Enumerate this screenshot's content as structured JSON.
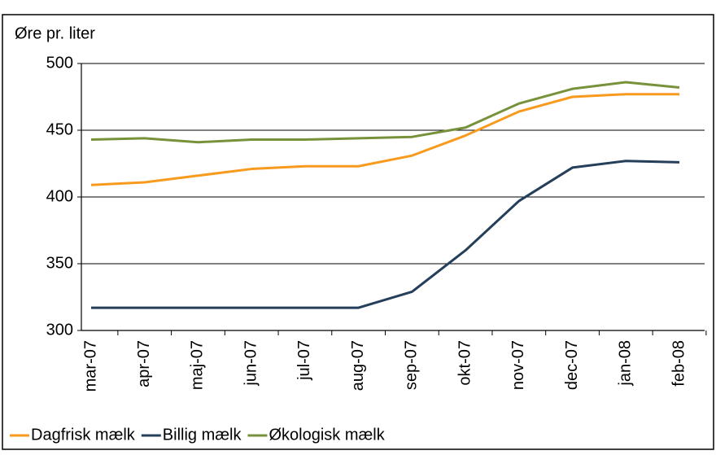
{
  "chart_data": {
    "type": "line",
    "y_label": "Øre pr. liter",
    "categories": [
      "mar-07",
      "apr-07",
      "maj-07",
      "jun-07",
      "jul-07",
      "aug-07",
      "sep-07",
      "okt-07",
      "nov-07",
      "dec-07",
      "jan-08",
      "feb-08"
    ],
    "series": [
      {
        "name": "Dagfrisk mælk",
        "color": "#f79a1e",
        "values": [
          409,
          411,
          416,
          421,
          423,
          423,
          431,
          446,
          464,
          475,
          477,
          477
        ]
      },
      {
        "name": "Billig mælk",
        "color": "#253f5b",
        "values": [
          317,
          317,
          317,
          317,
          317,
          317,
          329,
          360,
          397,
          422,
          427,
          426
        ]
      },
      {
        "name": "Økologisk mælk",
        "color": "#77923b",
        "values": [
          443,
          444,
          441,
          443,
          443,
          444,
          445,
          452,
          470,
          481,
          486,
          482
        ]
      }
    ],
    "ylim": [
      300,
      500
    ],
    "yticks": [
      300,
      350,
      400,
      450,
      500
    ],
    "grid": true,
    "legend": "bottom"
  }
}
